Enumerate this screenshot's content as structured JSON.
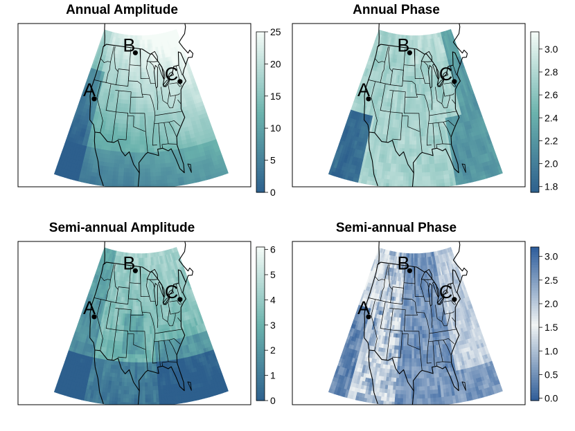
{
  "panels": [
    {
      "title": "Annual Amplitude",
      "scale": "seq",
      "legend_ticks": [
        "0",
        "5",
        "10",
        "15",
        "20",
        "25"
      ],
      "range": [
        0,
        25
      ],
      "sites": [
        "A",
        "B",
        "C"
      ]
    },
    {
      "title": "Annual Phase",
      "scale": "seq",
      "legend_ticks": [
        "1.8",
        "2.0",
        "2.2",
        "2.4",
        "2.6",
        "2.8",
        "3.0"
      ],
      "range": [
        1.75,
        3.15
      ],
      "sites": [
        "A",
        "B",
        "C"
      ]
    },
    {
      "title": "Semi-annual Amplitude",
      "scale": "seq",
      "legend_ticks": [
        "0",
        "1",
        "2",
        "3",
        "4",
        "5",
        "6"
      ],
      "range": [
        0,
        6.1
      ],
      "sites": [
        "A",
        "B",
        "C"
      ]
    },
    {
      "title": "Semi-annual Phase",
      "scale": "div",
      "legend_ticks": [
        "0.0",
        "0.5",
        "1.0",
        "1.5",
        "2.0",
        "2.5",
        "3.0"
      ],
      "range": [
        -0.05,
        3.2
      ],
      "sites": [
        "A",
        "B",
        "C"
      ]
    }
  ],
  "colors": {
    "seq_low": "#2d5f8d",
    "seq_mid": "#6bb3ad",
    "seq_high": "#f4fbf7",
    "div_low": "#2b5a96",
    "div_mid": "#f1f4f4",
    "div_high": "#2f5e9c"
  }
}
